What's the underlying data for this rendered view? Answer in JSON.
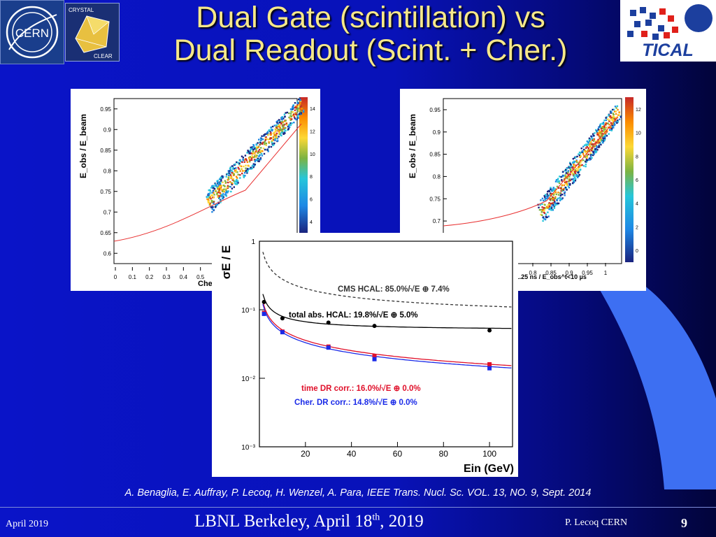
{
  "title": {
    "line1": "Dual Gate (scintillation) vs",
    "line2": "Dual Readout (Scint. + Cher.)"
  },
  "logos": {
    "cern": "CERN",
    "crystal_top": "CRYSTAL",
    "crystal_bottom": "CLEAR",
    "tical": "TICAL"
  },
  "left_plot": {
    "ylabel": "E_obs / E_beam",
    "xlabel": "Chere",
    "yticks": [
      "0.6",
      "0.65",
      "0.7",
      "0.75",
      "0.8",
      "0.85",
      "0.9",
      "0.95"
    ],
    "xticks": [
      "0",
      "0.1",
      "0.2",
      "0.3",
      "0.4",
      "0.5"
    ],
    "zticks": [
      "4",
      "6",
      "8",
      "10",
      "12",
      "14"
    ]
  },
  "right_plot": {
    "ylabel": "E_obs / E_beam",
    "xlabel": "E_obs^t<1.25 ns / E_obs^t<10 µs",
    "yticks": [
      "0.7",
      "0.75",
      "0.8",
      "0.85",
      "0.9",
      "0.95"
    ],
    "xticks": [
      "0.8",
      "0.85",
      "0.9",
      "0.95",
      "1"
    ],
    "zticks": [
      "0",
      "2",
      "4",
      "6",
      "8",
      "10",
      "12"
    ]
  },
  "chart_data": {
    "type": "scatter",
    "ylabel": "σE / E",
    "xlabel": "Ein (GeV)",
    "xlim": [
      0,
      110
    ],
    "ylim": [
      0.001,
      1
    ],
    "yscale": "log",
    "xticks": [
      "20",
      "40",
      "60",
      "80",
      "100"
    ],
    "yticks": [
      "10⁻³",
      "10⁻²",
      "10⁻¹",
      "1"
    ],
    "annotations": [
      {
        "text": "CMS HCAL: 85.0%/√E ⊕ 7.4%",
        "color": "#333333"
      },
      {
        "text": "total abs. HCAL: 19.8%/√E ⊕ 5.0%",
        "color": "#000000"
      },
      {
        "text": "time DR corr.: 16.0%/√E ⊕ 0.0%",
        "color": "#e0102a"
      },
      {
        "text": "Cher. DR corr.: 14.8%/√E ⊕ 0.0%",
        "color": "#1a2ae8"
      }
    ],
    "series": [
      {
        "name": "CMS HCAL: 85.0%/√E ⊕ 7.4%",
        "style": "dashed",
        "color": "#333333",
        "a": 0.85,
        "b": 0.074
      },
      {
        "name": "total abs. HCAL: 19.8%/√E ⊕ 5.0%",
        "color": "#000000",
        "a": 0.198,
        "b": 0.05,
        "points": [
          [
            2,
            0.13
          ],
          [
            10,
            0.075
          ],
          [
            30,
            0.065
          ],
          [
            50,
            0.058
          ],
          [
            100,
            0.05
          ]
        ]
      },
      {
        "name": "time DR corr.: 16.0%/√E ⊕ 0.0%",
        "color": "#e0102a",
        "a": 0.16,
        "b": 0.0,
        "points": [
          [
            2,
            0.09
          ],
          [
            10,
            0.048
          ],
          [
            30,
            0.029
          ],
          [
            50,
            0.021
          ],
          [
            100,
            0.016
          ]
        ]
      },
      {
        "name": "Cher. DR corr.: 14.8%/√E ⊕ 0.0%",
        "color": "#1a2ae8",
        "a": 0.148,
        "b": 0.0,
        "points": [
          [
            2,
            0.087
          ],
          [
            10,
            0.047
          ],
          [
            30,
            0.028
          ],
          [
            50,
            0.019
          ],
          [
            100,
            0.014
          ]
        ]
      }
    ]
  },
  "citation": "A. Benaglia,  E. Auffray, P. Lecoq, H. Wenzel, A. Para, IEEE Trans. Nucl. Sc. VOL. 13, NO. 9, Sept. 2014",
  "footer": {
    "date": "April 2019",
    "venue_main": "LBNL Berkeley, April 18",
    "venue_sup": "th",
    "venue_tail": ", 2019",
    "author": "P. Lecoq  CERN",
    "page": "9"
  },
  "colors": {
    "title": "#f6e88a",
    "background": "#0a14c8",
    "accent": "#4a7af0"
  }
}
